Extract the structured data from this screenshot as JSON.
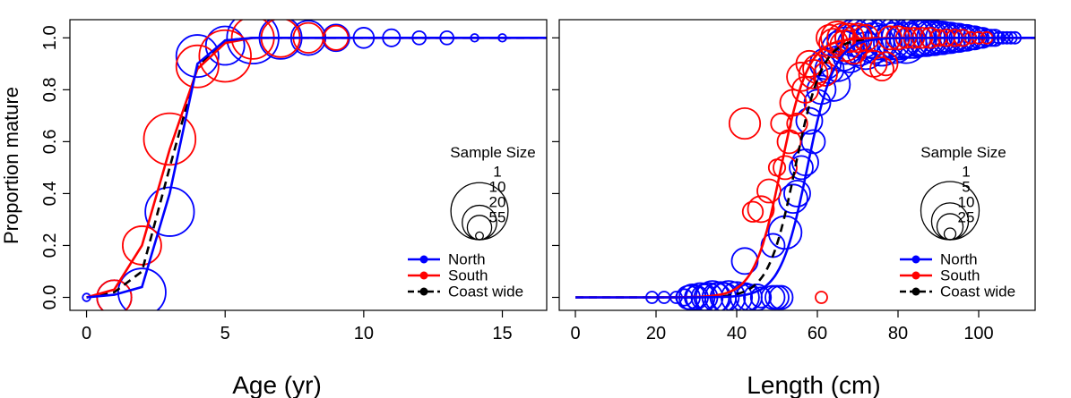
{
  "shared": {
    "ylabel": "Proportion mature",
    "ylim": [
      -0.05,
      1.07
    ],
    "yticks": [
      0.0,
      0.2,
      0.4,
      0.6,
      0.8,
      1.0
    ],
    "ytick_labels": [
      "0.0",
      "0.2",
      "0.4",
      "0.6",
      "0.8",
      "1.0"
    ],
    "colors": {
      "North": "#0000ff",
      "South": "#ff0000",
      "Coast wide": "#000000"
    }
  },
  "chart_data": [
    {
      "type": "line",
      "xlabel": "Age (yr)",
      "xlim": [
        -0.6,
        16.6
      ],
      "xticks": [
        0,
        5,
        10,
        15
      ],
      "xtick_labels": [
        "0",
        "5",
        "10",
        "15"
      ],
      "legend": {
        "title": "Sample Size",
        "size_labels": [
          "1",
          "10",
          "20",
          "55"
        ],
        "size_values": [
          1,
          10,
          20,
          55
        ],
        "entries": [
          "North",
          "South",
          "Coast wide"
        ]
      },
      "series": [
        {
          "name": "North",
          "curve": {
            "x": [
              0,
              1,
              2,
              3,
              4,
              5,
              6,
              7,
              16.6
            ],
            "y": [
              0.0,
              0.01,
              0.04,
              0.4,
              0.9,
              0.99,
              1.0,
              1.0,
              1.0
            ]
          },
          "points": [
            {
              "x": 0,
              "y": 0.0,
              "n": 1
            },
            {
              "x": 1,
              "y": 0.0,
              "n": 20
            },
            {
              "x": 2,
              "y": 0.02,
              "n": 38
            },
            {
              "x": 3,
              "y": 0.33,
              "n": 40
            },
            {
              "x": 4,
              "y": 0.93,
              "n": 30
            },
            {
              "x": 5,
              "y": 0.97,
              "n": 25
            },
            {
              "x": 6,
              "y": 1.0,
              "n": 45
            },
            {
              "x": 7,
              "y": 1.0,
              "n": 30
            },
            {
              "x": 8,
              "y": 1.0,
              "n": 20
            },
            {
              "x": 9,
              "y": 1.0,
              "n": 12
            },
            {
              "x": 10,
              "y": 1.0,
              "n": 7
            },
            {
              "x": 11,
              "y": 1.0,
              "n": 5
            },
            {
              "x": 12,
              "y": 1.0,
              "n": 3
            },
            {
              "x": 13,
              "y": 1.0,
              "n": 3
            },
            {
              "x": 14,
              "y": 1.0,
              "n": 1
            },
            {
              "x": 15,
              "y": 1.0,
              "n": 1
            }
          ]
        },
        {
          "name": "South",
          "curve": {
            "x": [
              0,
              1,
              2,
              3,
              4,
              5,
              6,
              7,
              16.6
            ],
            "y": [
              0.0,
              0.03,
              0.2,
              0.57,
              0.88,
              0.98,
              1.0,
              1.0,
              1.0
            ]
          },
          "points": [
            {
              "x": 1,
              "y": 0.0,
              "n": 20
            },
            {
              "x": 2,
              "y": 0.2,
              "n": 25
            },
            {
              "x": 3,
              "y": 0.61,
              "n": 45
            },
            {
              "x": 4,
              "y": 0.89,
              "n": 30
            },
            {
              "x": 5,
              "y": 0.93,
              "n": 45
            },
            {
              "x": 6,
              "y": 1.0,
              "n": 30
            },
            {
              "x": 7,
              "y": 1.0,
              "n": 25
            },
            {
              "x": 8,
              "y": 1.0,
              "n": 15
            },
            {
              "x": 9,
              "y": 1.0,
              "n": 10
            }
          ]
        },
        {
          "name": "Coast wide",
          "curve": {
            "x": [
              0,
              1,
              2,
              3,
              4,
              5,
              6,
              7,
              16.6
            ],
            "y": [
              0.0,
              0.02,
              0.1,
              0.5,
              0.89,
              0.99,
              1.0,
              1.0,
              1.0
            ]
          },
          "points": []
        }
      ]
    },
    {
      "type": "line",
      "xlabel": "Length (cm)",
      "xlim": [
        -4,
        114
      ],
      "xticks": [
        0,
        20,
        40,
        60,
        80,
        100
      ],
      "xtick_labels": [
        "0",
        "20",
        "40",
        "60",
        "80",
        "100"
      ],
      "legend": {
        "title": "Sample Size",
        "size_labels": [
          "1",
          "5",
          "10",
          "25"
        ],
        "size_values": [
          1,
          5,
          10,
          25
        ],
        "entries": [
          "North",
          "South",
          "Coast wide"
        ]
      },
      "series": [
        {
          "name": "North",
          "logistic": {
            "l50": 57.5,
            "slope": 0.3
          },
          "points": [
            {
              "x": 19,
              "y": 0.0,
              "n": 1
            },
            {
              "x": 22,
              "y": 0.0,
              "n": 1
            },
            {
              "x": 25,
              "y": 0.0,
              "n": 1
            },
            {
              "x": 27,
              "y": 0.0,
              "n": 2
            },
            {
              "x": 28,
              "y": 0.0,
              "n": 4
            },
            {
              "x": 29,
              "y": 0.0,
              "n": 5
            },
            {
              "x": 30,
              "y": 0.0,
              "n": 4
            },
            {
              "x": 31,
              "y": 0.0,
              "n": 6
            },
            {
              "x": 32,
              "y": 0.0,
              "n": 5
            },
            {
              "x": 33,
              "y": 0.0,
              "n": 6
            },
            {
              "x": 34,
              "y": 0.0,
              "n": 8
            },
            {
              "x": 35,
              "y": 0.0,
              "n": 6
            },
            {
              "x": 36,
              "y": 0.0,
              "n": 7
            },
            {
              "x": 37,
              "y": 0.0,
              "n": 6
            },
            {
              "x": 38,
              "y": 0.0,
              "n": 8
            },
            {
              "x": 40,
              "y": 0.0,
              "n": 7
            },
            {
              "x": 42,
              "y": 0.0,
              "n": 6
            },
            {
              "x": 43,
              "y": 0.0,
              "n": 5
            },
            {
              "x": 45,
              "y": 0.0,
              "n": 5
            },
            {
              "x": 46,
              "y": 0.0,
              "n": 3
            },
            {
              "x": 49,
              "y": 0.0,
              "n": 4
            },
            {
              "x": 50,
              "y": 0.0,
              "n": 4
            },
            {
              "x": 51,
              "y": 0.0,
              "n": 4
            },
            {
              "x": 42,
              "y": 0.14,
              "n": 5
            },
            {
              "x": 49,
              "y": 0.2,
              "n": 4
            },
            {
              "x": 52,
              "y": 0.25,
              "n": 8
            },
            {
              "x": 54,
              "y": 0.38,
              "n": 6
            },
            {
              "x": 55,
              "y": 0.4,
              "n": 5
            },
            {
              "x": 56,
              "y": 0.5,
              "n": 4
            },
            {
              "x": 57,
              "y": 0.52,
              "n": 5
            },
            {
              "x": 58,
              "y": 0.68,
              "n": 5
            },
            {
              "x": 59,
              "y": 0.6,
              "n": 4
            },
            {
              "x": 60,
              "y": 0.75,
              "n": 5
            },
            {
              "x": 61,
              "y": 0.8,
              "n": 6
            },
            {
              "x": 62,
              "y": 0.9,
              "n": 7
            },
            {
              "x": 63,
              "y": 0.88,
              "n": 6
            },
            {
              "x": 64,
              "y": 0.82,
              "n": 8
            },
            {
              "x": 65,
              "y": 0.9,
              "n": 9
            },
            {
              "x": 66,
              "y": 0.95,
              "n": 12
            },
            {
              "x": 67,
              "y": 0.97,
              "n": 10
            },
            {
              "x": 68,
              "y": 0.93,
              "n": 8
            },
            {
              "x": 69,
              "y": 1.0,
              "n": 10
            },
            {
              "x": 70,
              "y": 0.97,
              "n": 12
            },
            {
              "x": 71,
              "y": 1.0,
              "n": 12
            },
            {
              "x": 72,
              "y": 0.95,
              "n": 10
            },
            {
              "x": 73,
              "y": 1.0,
              "n": 12
            },
            {
              "x": 74,
              "y": 0.98,
              "n": 12
            },
            {
              "x": 75,
              "y": 1.0,
              "n": 14
            },
            {
              "x": 76,
              "y": 0.97,
              "n": 12
            },
            {
              "x": 77,
              "y": 1.0,
              "n": 12
            },
            {
              "x": 78,
              "y": 1.0,
              "n": 14
            },
            {
              "x": 79,
              "y": 0.98,
              "n": 12
            },
            {
              "x": 80,
              "y": 1.0,
              "n": 14
            },
            {
              "x": 81,
              "y": 1.0,
              "n": 12
            },
            {
              "x": 82,
              "y": 0.98,
              "n": 12
            },
            {
              "x": 83,
              "y": 1.0,
              "n": 12
            },
            {
              "x": 84,
              "y": 1.0,
              "n": 12
            },
            {
              "x": 85,
              "y": 1.0,
              "n": 10
            },
            {
              "x": 86,
              "y": 1.0,
              "n": 10
            },
            {
              "x": 87,
              "y": 1.0,
              "n": 10
            },
            {
              "x": 88,
              "y": 1.0,
              "n": 9
            },
            {
              "x": 89,
              "y": 1.0,
              "n": 9
            },
            {
              "x": 90,
              "y": 1.0,
              "n": 8
            },
            {
              "x": 91,
              "y": 1.0,
              "n": 8
            },
            {
              "x": 92,
              "y": 1.0,
              "n": 7
            },
            {
              "x": 93,
              "y": 1.0,
              "n": 7
            },
            {
              "x": 94,
              "y": 1.0,
              "n": 6
            },
            {
              "x": 95,
              "y": 1.0,
              "n": 6
            },
            {
              "x": 96,
              "y": 1.0,
              "n": 5
            },
            {
              "x": 97,
              "y": 1.0,
              "n": 5
            },
            {
              "x": 98,
              "y": 1.0,
              "n": 4
            },
            {
              "x": 99,
              "y": 1.0,
              "n": 4
            },
            {
              "x": 100,
              "y": 1.0,
              "n": 3
            },
            {
              "x": 101,
              "y": 1.0,
              "n": 3
            },
            {
              "x": 102,
              "y": 1.0,
              "n": 2
            },
            {
              "x": 103,
              "y": 1.0,
              "n": 2
            },
            {
              "x": 104,
              "y": 1.0,
              "n": 2
            },
            {
              "x": 105,
              "y": 1.0,
              "n": 1
            },
            {
              "x": 106,
              "y": 1.0,
              "n": 1
            },
            {
              "x": 107,
              "y": 1.0,
              "n": 1
            },
            {
              "x": 108,
              "y": 1.0,
              "n": 1
            },
            {
              "x": 109,
              "y": 1.0,
              "n": 1
            }
          ]
        },
        {
          "name": "South",
          "logistic": {
            "l50": 51,
            "slope": 0.3
          },
          "points": [
            {
              "x": 61,
              "y": 0.0,
              "n": 1
            },
            {
              "x": 42,
              "y": 0.67,
              "n": 7
            },
            {
              "x": 44,
              "y": 0.33,
              "n": 3
            },
            {
              "x": 46,
              "y": 0.34,
              "n": 5
            },
            {
              "x": 48,
              "y": 0.41,
              "n": 4
            },
            {
              "x": 50,
              "y": 0.5,
              "n": 2
            },
            {
              "x": 51,
              "y": 0.67,
              "n": 3
            },
            {
              "x": 52,
              "y": 0.5,
              "n": 4
            },
            {
              "x": 53,
              "y": 0.6,
              "n": 4
            },
            {
              "x": 54,
              "y": 0.75,
              "n": 5
            },
            {
              "x": 55,
              "y": 0.67,
              "n": 3
            },
            {
              "x": 56,
              "y": 0.85,
              "n": 6
            },
            {
              "x": 57,
              "y": 0.8,
              "n": 5
            },
            {
              "x": 58,
              "y": 0.9,
              "n": 5
            },
            {
              "x": 59,
              "y": 0.86,
              "n": 6
            },
            {
              "x": 60,
              "y": 0.88,
              "n": 6
            },
            {
              "x": 62,
              "y": 0.86,
              "n": 4
            },
            {
              "x": 63,
              "y": 1.0,
              "n": 5
            },
            {
              "x": 64,
              "y": 0.98,
              "n": 6
            },
            {
              "x": 65,
              "y": 1.0,
              "n": 8
            },
            {
              "x": 66,
              "y": 1.0,
              "n": 6
            },
            {
              "x": 67,
              "y": 0.97,
              "n": 7
            },
            {
              "x": 68,
              "y": 1.0,
              "n": 6
            },
            {
              "x": 69,
              "y": 0.95,
              "n": 5
            },
            {
              "x": 70,
              "y": 1.0,
              "n": 6
            },
            {
              "x": 72,
              "y": 1.0,
              "n": 5
            },
            {
              "x": 74,
              "y": 0.9,
              "n": 5
            },
            {
              "x": 76,
              "y": 0.88,
              "n": 4
            },
            {
              "x": 77,
              "y": 0.9,
              "n": 4
            },
            {
              "x": 78,
              "y": 1.0,
              "n": 4
            },
            {
              "x": 80,
              "y": 1.0,
              "n": 4
            },
            {
              "x": 82,
              "y": 1.0,
              "n": 3
            },
            {
              "x": 84,
              "y": 1.0,
              "n": 3
            },
            {
              "x": 86,
              "y": 1.0,
              "n": 3
            },
            {
              "x": 88,
              "y": 1.0,
              "n": 3
            },
            {
              "x": 90,
              "y": 1.0,
              "n": 2
            },
            {
              "x": 92,
              "y": 1.0,
              "n": 2
            },
            {
              "x": 94,
              "y": 1.0,
              "n": 2
            },
            {
              "x": 96,
              "y": 1.0,
              "n": 2
            },
            {
              "x": 98,
              "y": 1.0,
              "n": 1
            },
            {
              "x": 100,
              "y": 1.0,
              "n": 1
            },
            {
              "x": 102,
              "y": 1.0,
              "n": 1
            }
          ]
        },
        {
          "name": "Coast wide",
          "logistic": {
            "l50": 54.5,
            "slope": 0.3
          },
          "points": []
        }
      ]
    }
  ]
}
